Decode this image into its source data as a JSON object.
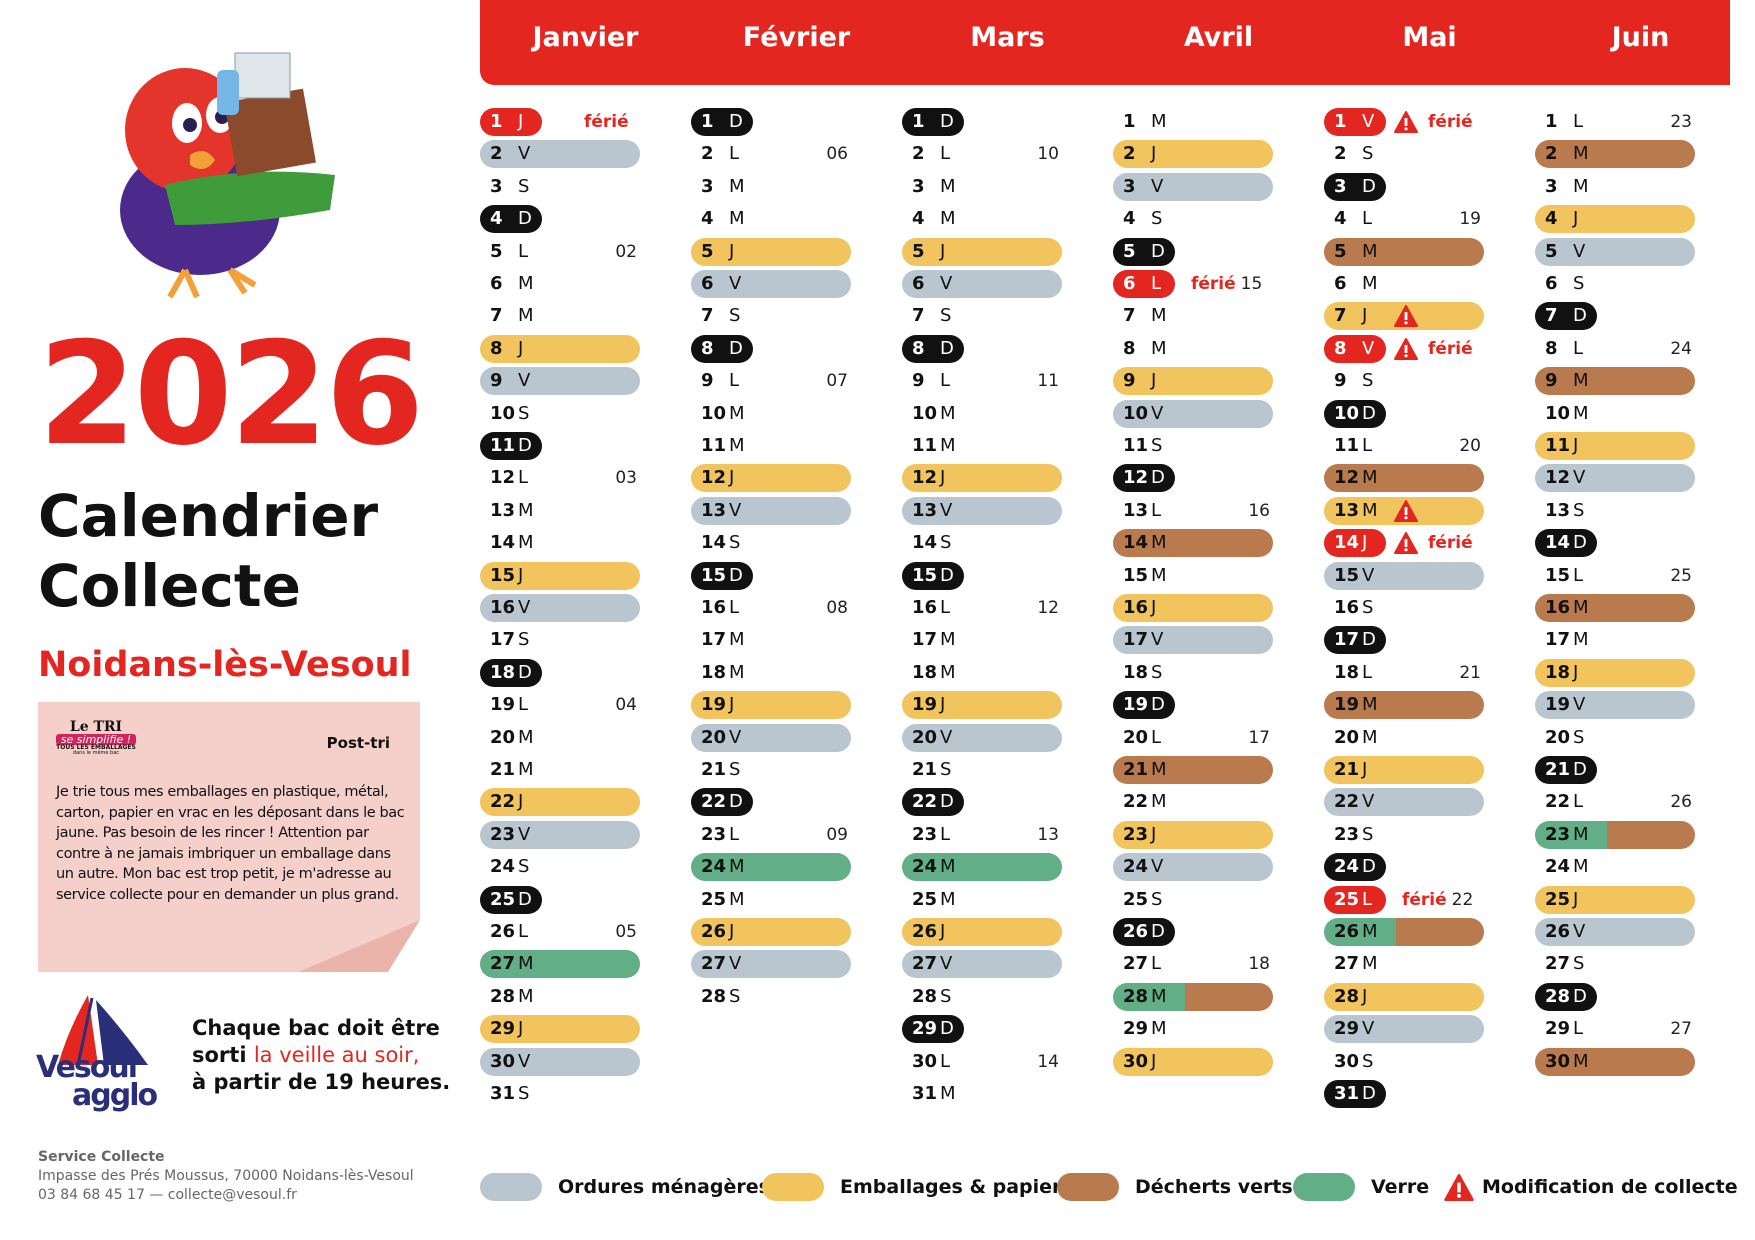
{
  "header": {
    "year": "2026",
    "title_line1": "Calendrier",
    "title_line2": "Collecte",
    "town": "Noidans-lès-Vesoul"
  },
  "info": {
    "logo_line1": "Le TRI",
    "logo_line2": "se simplifie !",
    "logo_line3": "TOUS LES EMBALLAGES",
    "logo_line4": "dans le même bac",
    "heading": "Post-tri",
    "body": "Je trie tous mes emballages en plastique, métal, carton, papier en vrac en les déposant dans le bac jaune. Pas besoin de les rincer ! Attention par contre à ne jamais imbriquer un emballage dans un autre. Mon bac est trop petit, je m'adresse au service collecte pour en demander un plus grand."
  },
  "brand": {
    "line1": "Vesoul",
    "line2": "agglo"
  },
  "notice": {
    "line1": "Chaque bac doit être",
    "line2": "sorti ",
    "highlight": "la veille au soir,",
    "line3": "à partir de 19 heures."
  },
  "footer": {
    "service": "Service Collecte",
    "address": "Impasse des Prés Moussus, 70000 Noidans-lès-Vesoul",
    "contact": "03 84 68 45 17 — collecte@vesoul.fr"
  },
  "legend": [
    {
      "label": "Ordures ménagères",
      "color": "#b9c6cf"
    },
    {
      "label": "Emballages & papiers",
      "color": "#f1c45e"
    },
    {
      "label": "Décherts verts",
      "color": "#b97b4d"
    },
    {
      "label": "Verre",
      "color": "#62ae86"
    },
    {
      "label": "Modification de collecte"
    }
  ],
  "months": [
    {
      "name": "Janvier",
      "days": [
        {
          "n": 1,
          "d": "J",
          "t": "ferie",
          "f": "férié"
        },
        {
          "n": 2,
          "d": "V",
          "t": "gris"
        },
        {
          "n": 3,
          "d": "S"
        },
        {
          "n": 4,
          "d": "D",
          "t": "dim"
        },
        {
          "n": 5,
          "d": "L",
          "w": "02"
        },
        {
          "n": 6,
          "d": "M"
        },
        {
          "n": 7,
          "d": "M"
        },
        {
          "n": 8,
          "d": "J",
          "t": "jaune"
        },
        {
          "n": 9,
          "d": "V",
          "t": "gris"
        },
        {
          "n": 10,
          "d": "S"
        },
        {
          "n": 11,
          "d": "D",
          "t": "dim"
        },
        {
          "n": 12,
          "d": "L",
          "w": "03"
        },
        {
          "n": 13,
          "d": "M"
        },
        {
          "n": 14,
          "d": "M"
        },
        {
          "n": 15,
          "d": "J",
          "t": "jaune"
        },
        {
          "n": 16,
          "d": "V",
          "t": "gris"
        },
        {
          "n": 17,
          "d": "S"
        },
        {
          "n": 18,
          "d": "D",
          "t": "dim"
        },
        {
          "n": 19,
          "d": "L",
          "w": "04"
        },
        {
          "n": 20,
          "d": "M"
        },
        {
          "n": 21,
          "d": "M"
        },
        {
          "n": 22,
          "d": "J",
          "t": "jaune"
        },
        {
          "n": 23,
          "d": "V",
          "t": "gris"
        },
        {
          "n": 24,
          "d": "S"
        },
        {
          "n": 25,
          "d": "D",
          "t": "dim"
        },
        {
          "n": 26,
          "d": "L",
          "w": "05"
        },
        {
          "n": 27,
          "d": "M",
          "t": "vert"
        },
        {
          "n": 28,
          "d": "M"
        },
        {
          "n": 29,
          "d": "J",
          "t": "jaune"
        },
        {
          "n": 30,
          "d": "V",
          "t": "gris"
        },
        {
          "n": 31,
          "d": "S"
        }
      ]
    },
    {
      "name": "Février",
      "days": [
        {
          "n": 1,
          "d": "D",
          "t": "dim"
        },
        {
          "n": 2,
          "d": "L",
          "w": "06"
        },
        {
          "n": 3,
          "d": "M"
        },
        {
          "n": 4,
          "d": "M"
        },
        {
          "n": 5,
          "d": "J",
          "t": "jaune"
        },
        {
          "n": 6,
          "d": "V",
          "t": "gris"
        },
        {
          "n": 7,
          "d": "S"
        },
        {
          "n": 8,
          "d": "D",
          "t": "dim"
        },
        {
          "n": 9,
          "d": "L",
          "w": "07"
        },
        {
          "n": 10,
          "d": "M"
        },
        {
          "n": 11,
          "d": "M"
        },
        {
          "n": 12,
          "d": "J",
          "t": "jaune"
        },
        {
          "n": 13,
          "d": "V",
          "t": "gris"
        },
        {
          "n": 14,
          "d": "S"
        },
        {
          "n": 15,
          "d": "D",
          "t": "dim"
        },
        {
          "n": 16,
          "d": "L",
          "w": "08"
        },
        {
          "n": 17,
          "d": "M"
        },
        {
          "n": 18,
          "d": "M"
        },
        {
          "n": 19,
          "d": "J",
          "t": "jaune"
        },
        {
          "n": 20,
          "d": "V",
          "t": "gris"
        },
        {
          "n": 21,
          "d": "S"
        },
        {
          "n": 22,
          "d": "D",
          "t": "dim"
        },
        {
          "n": 23,
          "d": "L",
          "w": "09"
        },
        {
          "n": 24,
          "d": "M",
          "t": "vert"
        },
        {
          "n": 25,
          "d": "M"
        },
        {
          "n": 26,
          "d": "J",
          "t": "jaune"
        },
        {
          "n": 27,
          "d": "V",
          "t": "gris"
        },
        {
          "n": 28,
          "d": "S"
        }
      ]
    },
    {
      "name": "Mars",
      "days": [
        {
          "n": 1,
          "d": "D",
          "t": "dim"
        },
        {
          "n": 2,
          "d": "L",
          "w": "10"
        },
        {
          "n": 3,
          "d": "M"
        },
        {
          "n": 4,
          "d": "M"
        },
        {
          "n": 5,
          "d": "J",
          "t": "jaune"
        },
        {
          "n": 6,
          "d": "V",
          "t": "gris"
        },
        {
          "n": 7,
          "d": "S"
        },
        {
          "n": 8,
          "d": "D",
          "t": "dim"
        },
        {
          "n": 9,
          "d": "L",
          "w": "11"
        },
        {
          "n": 10,
          "d": "M"
        },
        {
          "n": 11,
          "d": "M"
        },
        {
          "n": 12,
          "d": "J",
          "t": "jaune"
        },
        {
          "n": 13,
          "d": "V",
          "t": "gris"
        },
        {
          "n": 14,
          "d": "S"
        },
        {
          "n": 15,
          "d": "D",
          "t": "dim"
        },
        {
          "n": 16,
          "d": "L",
          "w": "12"
        },
        {
          "n": 17,
          "d": "M"
        },
        {
          "n": 18,
          "d": "M"
        },
        {
          "n": 19,
          "d": "J",
          "t": "jaune"
        },
        {
          "n": 20,
          "d": "V",
          "t": "gris"
        },
        {
          "n": 21,
          "d": "S"
        },
        {
          "n": 22,
          "d": "D",
          "t": "dim"
        },
        {
          "n": 23,
          "d": "L",
          "w": "13"
        },
        {
          "n": 24,
          "d": "M",
          "t": "vert"
        },
        {
          "n": 25,
          "d": "M"
        },
        {
          "n": 26,
          "d": "J",
          "t": "jaune"
        },
        {
          "n": 27,
          "d": "V",
          "t": "gris"
        },
        {
          "n": 28,
          "d": "S"
        },
        {
          "n": 29,
          "d": "D",
          "t": "dim"
        },
        {
          "n": 30,
          "d": "L",
          "w": "14"
        },
        {
          "n": 31,
          "d": "M"
        }
      ]
    },
    {
      "name": "Avril",
      "days": [
        {
          "n": 1,
          "d": "M"
        },
        {
          "n": 2,
          "d": "J",
          "t": "jaune"
        },
        {
          "n": 3,
          "d": "V",
          "t": "gris"
        },
        {
          "n": 4,
          "d": "S"
        },
        {
          "n": 5,
          "d": "D",
          "t": "dim"
        },
        {
          "n": 6,
          "d": "L",
          "t": "ferie",
          "f": "férié",
          "w": "15"
        },
        {
          "n": 7,
          "d": "M"
        },
        {
          "n": 8,
          "d": "M"
        },
        {
          "n": 9,
          "d": "J",
          "t": "jaune"
        },
        {
          "n": 10,
          "d": "V",
          "t": "gris"
        },
        {
          "n": 11,
          "d": "S"
        },
        {
          "n": 12,
          "d": "D",
          "t": "dim"
        },
        {
          "n": 13,
          "d": "L",
          "w": "16"
        },
        {
          "n": 14,
          "d": "M",
          "t": "brun"
        },
        {
          "n": 15,
          "d": "M"
        },
        {
          "n": 16,
          "d": "J",
          "t": "jaune"
        },
        {
          "n": 17,
          "d": "V",
          "t": "gris"
        },
        {
          "n": 18,
          "d": "S"
        },
        {
          "n": 19,
          "d": "D",
          "t": "dim"
        },
        {
          "n": 20,
          "d": "L",
          "w": "17"
        },
        {
          "n": 21,
          "d": "M",
          "t": "brun"
        },
        {
          "n": 22,
          "d": "M"
        },
        {
          "n": 23,
          "d": "J",
          "t": "jaune"
        },
        {
          "n": 24,
          "d": "V",
          "t": "gris"
        },
        {
          "n": 25,
          "d": "S"
        },
        {
          "n": 26,
          "d": "D",
          "t": "dim"
        },
        {
          "n": 27,
          "d": "L",
          "w": "18"
        },
        {
          "n": 28,
          "d": "M",
          "t": "vert-brun"
        },
        {
          "n": 29,
          "d": "M"
        },
        {
          "n": 30,
          "d": "J",
          "t": "jaune"
        }
      ]
    },
    {
      "name": "Mai",
      "days": [
        {
          "n": 1,
          "d": "V",
          "t": "ferie",
          "x": true,
          "f": "férié"
        },
        {
          "n": 2,
          "d": "S"
        },
        {
          "n": 3,
          "d": "D",
          "t": "dim"
        },
        {
          "n": 4,
          "d": "L",
          "w": "19"
        },
        {
          "n": 5,
          "d": "M",
          "t": "brun"
        },
        {
          "n": 6,
          "d": "M"
        },
        {
          "n": 7,
          "d": "J",
          "t": "jaune",
          "x": true
        },
        {
          "n": 8,
          "d": "V",
          "t": "ferie",
          "x": true,
          "f": "férié"
        },
        {
          "n": 9,
          "d": "S"
        },
        {
          "n": 10,
          "d": "D",
          "t": "dim"
        },
        {
          "n": 11,
          "d": "L",
          "w": "20"
        },
        {
          "n": 12,
          "d": "M",
          "t": "brun"
        },
        {
          "n": 13,
          "d": "M",
          "t": "jaune",
          "x": true
        },
        {
          "n": 14,
          "d": "J",
          "t": "ferie",
          "x": true,
          "f": "férié"
        },
        {
          "n": 15,
          "d": "V",
          "t": "gris"
        },
        {
          "n": 16,
          "d": "S"
        },
        {
          "n": 17,
          "d": "D",
          "t": "dim"
        },
        {
          "n": 18,
          "d": "L",
          "w": "21"
        },
        {
          "n": 19,
          "d": "M",
          "t": "brun"
        },
        {
          "n": 20,
          "d": "M"
        },
        {
          "n": 21,
          "d": "J",
          "t": "jaune"
        },
        {
          "n": 22,
          "d": "V",
          "t": "gris"
        },
        {
          "n": 23,
          "d": "S"
        },
        {
          "n": 24,
          "d": "D",
          "t": "dim"
        },
        {
          "n": 25,
          "d": "L",
          "t": "ferie",
          "f": "férié",
          "w": "22"
        },
        {
          "n": 26,
          "d": "M",
          "t": "vert-brun"
        },
        {
          "n": 27,
          "d": "M"
        },
        {
          "n": 28,
          "d": "J",
          "t": "jaune"
        },
        {
          "n": 29,
          "d": "V",
          "t": "gris"
        },
        {
          "n": 30,
          "d": "S"
        },
        {
          "n": 31,
          "d": "D",
          "t": "dim"
        }
      ]
    },
    {
      "name": "Juin",
      "days": [
        {
          "n": 1,
          "d": "L",
          "w": "23"
        },
        {
          "n": 2,
          "d": "M",
          "t": "brun"
        },
        {
          "n": 3,
          "d": "M"
        },
        {
          "n": 4,
          "d": "J",
          "t": "jaune"
        },
        {
          "n": 5,
          "d": "V",
          "t": "gris"
        },
        {
          "n": 6,
          "d": "S"
        },
        {
          "n": 7,
          "d": "D",
          "t": "dim"
        },
        {
          "n": 8,
          "d": "L",
          "w": "24"
        },
        {
          "n": 9,
          "d": "M",
          "t": "brun"
        },
        {
          "n": 10,
          "d": "M"
        },
        {
          "n": 11,
          "d": "J",
          "t": "jaune"
        },
        {
          "n": 12,
          "d": "V",
          "t": "gris"
        },
        {
          "n": 13,
          "d": "S"
        },
        {
          "n": 14,
          "d": "D",
          "t": "dim"
        },
        {
          "n": 15,
          "d": "L",
          "w": "25"
        },
        {
          "n": 16,
          "d": "M",
          "t": "brun"
        },
        {
          "n": 17,
          "d": "M"
        },
        {
          "n": 18,
          "d": "J",
          "t": "jaune"
        },
        {
          "n": 19,
          "d": "V",
          "t": "gris"
        },
        {
          "n": 20,
          "d": "S"
        },
        {
          "n": 21,
          "d": "D",
          "t": "dim"
        },
        {
          "n": 22,
          "d": "L",
          "w": "26"
        },
        {
          "n": 23,
          "d": "M",
          "t": "vert-brun"
        },
        {
          "n": 24,
          "d": "M"
        },
        {
          "n": 25,
          "d": "J",
          "t": "jaune"
        },
        {
          "n": 26,
          "d": "V",
          "t": "gris"
        },
        {
          "n": 27,
          "d": "S"
        },
        {
          "n": 28,
          "d": "D",
          "t": "dim"
        },
        {
          "n": 29,
          "d": "L",
          "w": "27"
        },
        {
          "n": 30,
          "d": "M",
          "t": "brun"
        }
      ]
    }
  ]
}
